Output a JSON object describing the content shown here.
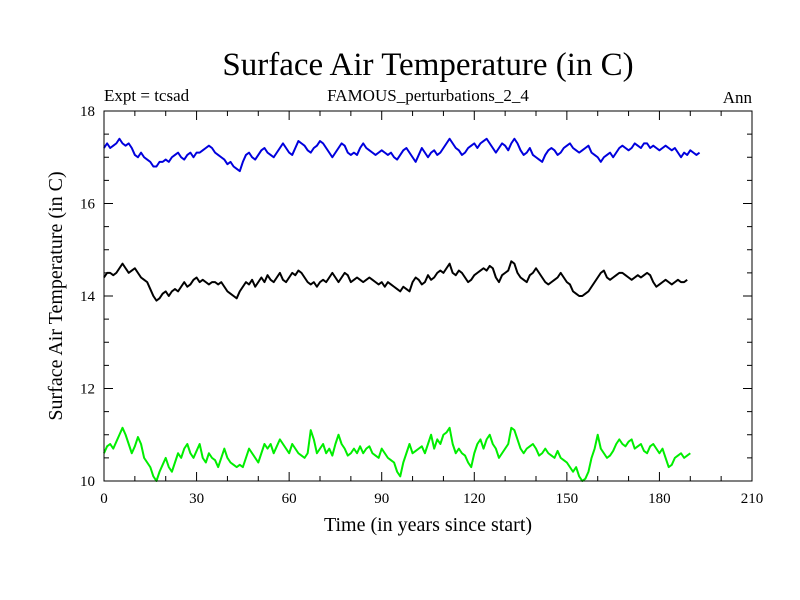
{
  "chart_data": {
    "type": "line",
    "title": "Surface Air Temperature (in C)",
    "subtitle_left": "Expt = tcsad",
    "subtitle_center": "FAMOUS_perturbations_2_4",
    "subtitle_right": "Ann",
    "xlabel": "Time (in years since start)",
    "ylabel": "Surface Air Temperature (in C)",
    "xlim": [
      0,
      210
    ],
    "ylim": [
      10,
      18
    ],
    "xticks": [
      0,
      30,
      60,
      90,
      120,
      150,
      180,
      210
    ],
    "yticks": [
      10,
      12,
      14,
      16,
      18
    ],
    "x_minor_step": 10,
    "y_minor_step": 0.5,
    "grid": false,
    "series": [
      {
        "name": "blue",
        "color": "#0000dd",
        "values": [
          17.2,
          17.3,
          17.2,
          17.25,
          17.3,
          17.4,
          17.3,
          17.25,
          17.3,
          17.2,
          17.05,
          17.0,
          17.1,
          17.0,
          16.95,
          16.9,
          16.8,
          16.8,
          16.9,
          16.9,
          16.95,
          16.9,
          17.0,
          17.05,
          17.1,
          17.0,
          16.95,
          17.05,
          17.1,
          17.0,
          17.1,
          17.1,
          17.15,
          17.2,
          17.25,
          17.2,
          17.1,
          17.05,
          17.0,
          16.95,
          16.85,
          16.9,
          16.8,
          16.75,
          16.7,
          16.9,
          17.05,
          17.1,
          17.0,
          16.95,
          17.05,
          17.15,
          17.2,
          17.1,
          17.05,
          17.0,
          17.1,
          17.2,
          17.3,
          17.2,
          17.1,
          17.05,
          17.2,
          17.35,
          17.3,
          17.25,
          17.15,
          17.1,
          17.2,
          17.25,
          17.35,
          17.3,
          17.2,
          17.1,
          17.0,
          17.1,
          17.2,
          17.3,
          17.25,
          17.1,
          17.05,
          17.1,
          17.05,
          17.2,
          17.3,
          17.2,
          17.15,
          17.1,
          17.05,
          17.1,
          17.15,
          17.1,
          17.05,
          17.1,
          17.0,
          16.95,
          17.05,
          17.15,
          17.2,
          17.1,
          17.0,
          16.9,
          17.05,
          17.2,
          17.1,
          17.0,
          17.1,
          17.15,
          17.05,
          17.1,
          17.2,
          17.3,
          17.4,
          17.3,
          17.2,
          17.15,
          17.05,
          17.1,
          17.2,
          17.25,
          17.3,
          17.2,
          17.3,
          17.35,
          17.4,
          17.3,
          17.2,
          17.1,
          17.2,
          17.3,
          17.25,
          17.15,
          17.3,
          17.4,
          17.3,
          17.15,
          17.05,
          17.1,
          17.2,
          17.05,
          17.0,
          16.95,
          16.9,
          17.05,
          17.15,
          17.2,
          17.15,
          17.05,
          17.1,
          17.2,
          17.25,
          17.3,
          17.2,
          17.15,
          17.1,
          17.15,
          17.2,
          17.25,
          17.1,
          17.05,
          17.0,
          16.9,
          17.0,
          17.05,
          17.1,
          17.0,
          17.1,
          17.2,
          17.25,
          17.2,
          17.15,
          17.2,
          17.3,
          17.25,
          17.2,
          17.3,
          17.3,
          17.2,
          17.25,
          17.2,
          17.15,
          17.2,
          17.25,
          17.2,
          17.15,
          17.2,
          17.1,
          17.0,
          17.1,
          17.05,
          17.15,
          17.1,
          17.05,
          17.1
        ]
      },
      {
        "name": "black",
        "color": "#000000",
        "values": [
          14.4,
          14.5,
          14.5,
          14.45,
          14.5,
          14.6,
          14.7,
          14.6,
          14.5,
          14.55,
          14.6,
          14.5,
          14.4,
          14.35,
          14.3,
          14.15,
          14.0,
          13.9,
          13.95,
          14.05,
          14.1,
          14.0,
          14.1,
          14.15,
          14.1,
          14.2,
          14.3,
          14.2,
          14.25,
          14.35,
          14.4,
          14.3,
          14.35,
          14.3,
          14.25,
          14.3,
          14.3,
          14.25,
          14.3,
          14.2,
          14.1,
          14.05,
          14.0,
          13.95,
          14.1,
          14.2,
          14.3,
          14.25,
          14.35,
          14.2,
          14.3,
          14.4,
          14.3,
          14.45,
          14.35,
          14.3,
          14.4,
          14.5,
          14.35,
          14.3,
          14.4,
          14.5,
          14.45,
          14.55,
          14.5,
          14.4,
          14.3,
          14.25,
          14.3,
          14.2,
          14.3,
          14.35,
          14.3,
          14.4,
          14.5,
          14.4,
          14.3,
          14.4,
          14.5,
          14.45,
          14.3,
          14.35,
          14.4,
          14.35,
          14.3,
          14.35,
          14.4,
          14.35,
          14.3,
          14.25,
          14.3,
          14.2,
          14.3,
          14.25,
          14.2,
          14.15,
          14.1,
          14.2,
          14.15,
          14.1,
          14.3,
          14.4,
          14.35,
          14.25,
          14.3,
          14.45,
          14.35,
          14.4,
          14.5,
          14.55,
          14.5,
          14.6,
          14.7,
          14.5,
          14.45,
          14.55,
          14.5,
          14.4,
          14.3,
          14.35,
          14.45,
          14.5,
          14.55,
          14.6,
          14.55,
          14.65,
          14.6,
          14.4,
          14.3,
          14.45,
          14.5,
          14.55,
          14.75,
          14.7,
          14.5,
          14.4,
          14.35,
          14.3,
          14.45,
          14.5,
          14.6,
          14.5,
          14.4,
          14.3,
          14.25,
          14.3,
          14.35,
          14.4,
          14.5,
          14.4,
          14.3,
          14.25,
          14.1,
          14.05,
          14.0,
          14.0,
          14.05,
          14.1,
          14.2,
          14.3,
          14.4,
          14.5,
          14.55,
          14.4,
          14.35,
          14.4,
          14.45,
          14.5,
          14.5,
          14.45,
          14.4,
          14.35,
          14.4,
          14.45,
          14.4,
          14.45,
          14.5,
          14.45,
          14.3,
          14.2,
          14.25,
          14.3,
          14.35,
          14.3,
          14.25,
          14.3,
          14.35,
          14.3,
          14.3,
          14.35
        ]
      },
      {
        "name": "green",
        "color": "#00ee00",
        "values": [
          10.6,
          10.75,
          10.8,
          10.7,
          10.85,
          11.0,
          11.15,
          11.0,
          10.8,
          10.6,
          10.75,
          10.95,
          10.8,
          10.5,
          10.4,
          10.3,
          10.1,
          10.0,
          10.2,
          10.35,
          10.5,
          10.3,
          10.2,
          10.4,
          10.6,
          10.5,
          10.7,
          10.8,
          10.6,
          10.5,
          10.65,
          10.8,
          10.5,
          10.4,
          10.6,
          10.5,
          10.45,
          10.3,
          10.5,
          10.7,
          10.5,
          10.4,
          10.35,
          10.3,
          10.35,
          10.3,
          10.5,
          10.7,
          10.6,
          10.5,
          10.4,
          10.6,
          10.8,
          10.7,
          10.8,
          10.6,
          10.75,
          10.9,
          10.8,
          10.7,
          10.6,
          10.8,
          10.7,
          10.6,
          10.55,
          10.5,
          10.6,
          11.1,
          10.9,
          10.6,
          10.7,
          10.8,
          10.6,
          10.7,
          10.55,
          10.8,
          11.0,
          10.8,
          10.7,
          10.55,
          10.6,
          10.7,
          10.6,
          10.75,
          10.6,
          10.7,
          10.75,
          10.6,
          10.55,
          10.5,
          10.7,
          10.6,
          10.5,
          10.45,
          10.4,
          10.2,
          10.1,
          10.4,
          10.6,
          10.8,
          10.6,
          10.65,
          10.7,
          10.75,
          10.6,
          10.8,
          11.0,
          10.7,
          10.9,
          10.8,
          11.0,
          11.05,
          11.15,
          10.8,
          10.6,
          10.7,
          10.6,
          10.55,
          10.4,
          10.3,
          10.6,
          10.8,
          10.9,
          10.7,
          10.9,
          11.0,
          10.8,
          10.7,
          10.5,
          10.6,
          10.7,
          10.8,
          11.15,
          11.1,
          10.9,
          10.7,
          10.6,
          10.7,
          10.75,
          10.8,
          10.7,
          10.55,
          10.6,
          10.7,
          10.6,
          10.55,
          10.5,
          10.65,
          10.5,
          10.45,
          10.4,
          10.3,
          10.2,
          10.3,
          10.1,
          10.0,
          10.05,
          10.2,
          10.5,
          10.7,
          11.0,
          10.7,
          10.6,
          10.5,
          10.55,
          10.65,
          10.8,
          10.9,
          10.8,
          10.75,
          10.85,
          10.9,
          10.7,
          10.75,
          10.8,
          10.65,
          10.6,
          10.75,
          10.8,
          10.7,
          10.6,
          10.7,
          10.5,
          10.3,
          10.35,
          10.5,
          10.55,
          10.6,
          10.5,
          10.55,
          10.6
        ]
      }
    ]
  }
}
